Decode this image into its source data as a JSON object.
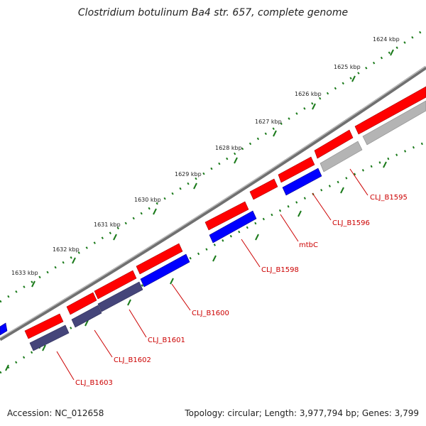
{
  "title": "Clostridium botulinum Ba4 str. 657, complete genome",
  "footer": {
    "accession": "Accession: NC_012658",
    "summary": "Topology: circular; Length: 3,977,794 bp; Genes: 3,799"
  },
  "scale_labels": [
    "1624 kbp",
    "1625 kbp",
    "1626 kbp",
    "1627 kbp",
    "1628 kbp",
    "1629 kbp",
    "1630 kbp",
    "1631 kbp",
    "1632 kbp",
    "1633 kbp"
  ],
  "gene_labels": [
    "CLJ_B1595",
    "CLJ_B1596",
    "mtbC",
    "CLJ_B1598",
    "CLJ_B1600",
    "CLJ_B1601",
    "CLJ_B1602",
    "CLJ_B1603"
  ],
  "colors": {
    "forward_gene": "#ff0000",
    "reverse_gene_blue": "#0000ff",
    "reverse_gene_indigo": "#45457a",
    "reverse_gene_gray": "#b4b4b4",
    "backbone": "#707070",
    "ticks": "#1a7a1a",
    "label": "#cc0000"
  }
}
